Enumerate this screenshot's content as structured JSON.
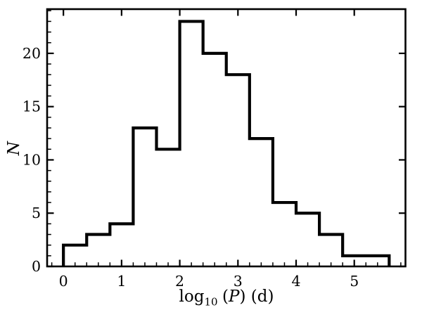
{
  "chart_data": {
    "type": "bar",
    "subtype": "histogram-step",
    "title": "",
    "xlabel": {
      "prefix": "log",
      "subscript": "10",
      "before_var": "(",
      "variable": "P",
      "after_var": ") (d)"
    },
    "ylabel": "N",
    "bin_edges": [
      0.0,
      0.4,
      0.8,
      1.2,
      1.6,
      2.0,
      2.4,
      2.8,
      3.2,
      3.6,
      4.0,
      4.4,
      4.8,
      5.2,
      5.6
    ],
    "counts": [
      2,
      3,
      4,
      13,
      11,
      23,
      20,
      18,
      12,
      6,
      5,
      3,
      1,
      1
    ],
    "xlim": [
      -0.28,
      5.88
    ],
    "ylim": [
      0,
      24.15
    ],
    "x_ticks": {
      "values": [
        0,
        1,
        2,
        3,
        4,
        5
      ],
      "labels": [
        "0",
        "1",
        "2",
        "3",
        "4",
        "5"
      ],
      "minor_step": 0.2
    },
    "y_ticks": {
      "values": [
        0,
        5,
        10,
        15,
        20
      ],
      "labels": [
        "0",
        "5",
        "10",
        "15",
        "20"
      ],
      "minor_step": 1
    },
    "grid": false,
    "legend": null,
    "line_color": "#000000",
    "frame_color": "#000000",
    "background": "#ffffff"
  }
}
